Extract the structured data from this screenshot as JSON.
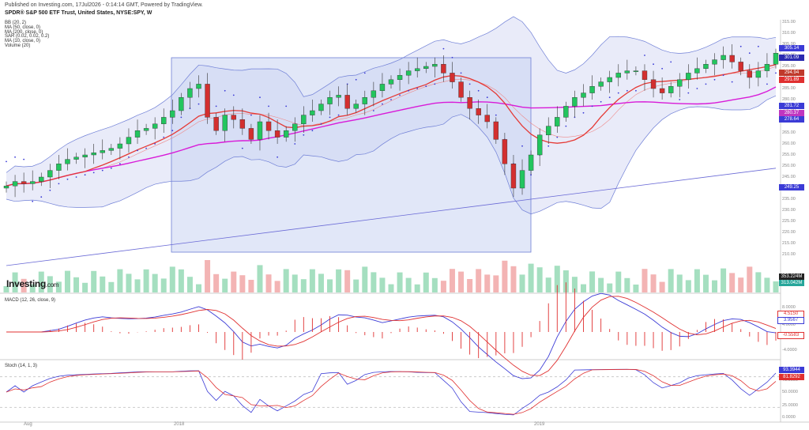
{
  "header": {
    "published": "Published on Investing.com, 17Jul2026 - 0:14:14 GMT, Powered by TradingView.",
    "symbol": "SPDR® S&P 500 ETF Trust, United States, NYSE:SPY, W"
  },
  "indicators_legend": [
    "BB (20, 2)",
    "MA (50, close, 0)",
    "MA (200, close, 0)",
    "SAR (0.02, 0.02, 0.2)",
    "MA (10, close, 0)",
    "Volume (20)"
  ],
  "logo": {
    "main": "Investing",
    "suffix": ".com"
  },
  "price_axis": {
    "ticks": [
      "315.00",
      "310.00",
      "305.00",
      "300.00",
      "295.00",
      "290.00",
      "285.00",
      "280.00",
      "275.00",
      "270.00",
      "265.00",
      "260.00",
      "255.00",
      "250.00",
      "245.00",
      "240.00",
      "235.00",
      "230.00",
      "225.00",
      "220.00",
      "215.00",
      "210.00"
    ],
    "tags": [
      {
        "label": "305.14",
        "color": "#3b3bd6"
      },
      {
        "label": "301.09",
        "color": "#2a2ab0"
      },
      {
        "label": "294.94",
        "color": "#c0392b"
      },
      {
        "label": "291.89",
        "color": "#e03030"
      },
      {
        "label": "281.72",
        "color": "#3b3bd6"
      },
      {
        "label": "280.37",
        "color": "#c036c0"
      },
      {
        "label": "278.64",
        "color": "#3b3bd6"
      },
      {
        "label": "249.25",
        "color": "#3b3bd6"
      },
      {
        "label": "353.224M",
        "color": "#222222"
      },
      {
        "label": "313.042M",
        "color": "#26a69a"
      }
    ]
  },
  "macd_pane": {
    "title": "MACD (12, 26, close, 9)",
    "ticks": [
      "8.0000",
      "4.0000",
      "0.0000",
      "-4.0000"
    ],
    "tags": [
      {
        "label": "4.5150",
        "color": "#e03030"
      },
      {
        "label": "3.9567",
        "color": "#3b3bd6"
      },
      {
        "label": "-0.5583",
        "color": "#e03030"
      }
    ]
  },
  "stoch_pane": {
    "title": "Stoch (14, 1, 3)",
    "ticks": [
      "100.0000",
      "75.0000",
      "50.0000",
      "25.0000",
      "0.0000"
    ],
    "tags": [
      {
        "label": "93.3944",
        "color": "#3b3bd6"
      },
      {
        "label": "81.8292",
        "color": "#e03030"
      }
    ]
  },
  "x_axis": {
    "labels": [
      "Aug",
      "2018",
      "2019"
    ]
  },
  "colors": {
    "up": "#22c55e",
    "down": "#d32f2f",
    "bb": "#6f7fd6",
    "ma50": "#e53935",
    "ma200": "#6a6ad6",
    "ma10": "#d81bd8",
    "bbfill": "#dfe3f7",
    "rect": "#c9d3f3"
  },
  "chart_data": {
    "type": "line",
    "title": "SPDR® S&P 500 ETF Trust, United States, NYSE:SPY, W",
    "ylim": [
      210,
      315
    ],
    "ohlc_close": [
      241,
      243,
      242,
      243,
      245,
      248,
      251,
      253,
      254,
      255,
      256,
      257,
      258,
      260,
      263,
      266,
      267,
      269,
      272,
      275,
      281,
      285,
      287,
      272,
      266,
      273,
      271,
      267,
      262,
      270,
      266,
      263,
      266,
      269,
      273,
      275,
      278,
      281,
      282,
      276,
      278,
      281,
      284,
      287,
      289,
      291,
      293,
      294,
      295,
      296,
      292,
      288,
      281,
      276,
      273,
      270,
      262,
      251,
      240,
      248,
      255,
      264,
      268,
      272,
      277,
      281,
      283,
      286,
      288,
      290,
      292,
      293,
      293,
      289,
      285,
      283,
      286,
      289,
      292,
      294,
      296,
      298,
      300,
      297,
      293,
      290,
      293,
      296,
      301
    ]
  }
}
